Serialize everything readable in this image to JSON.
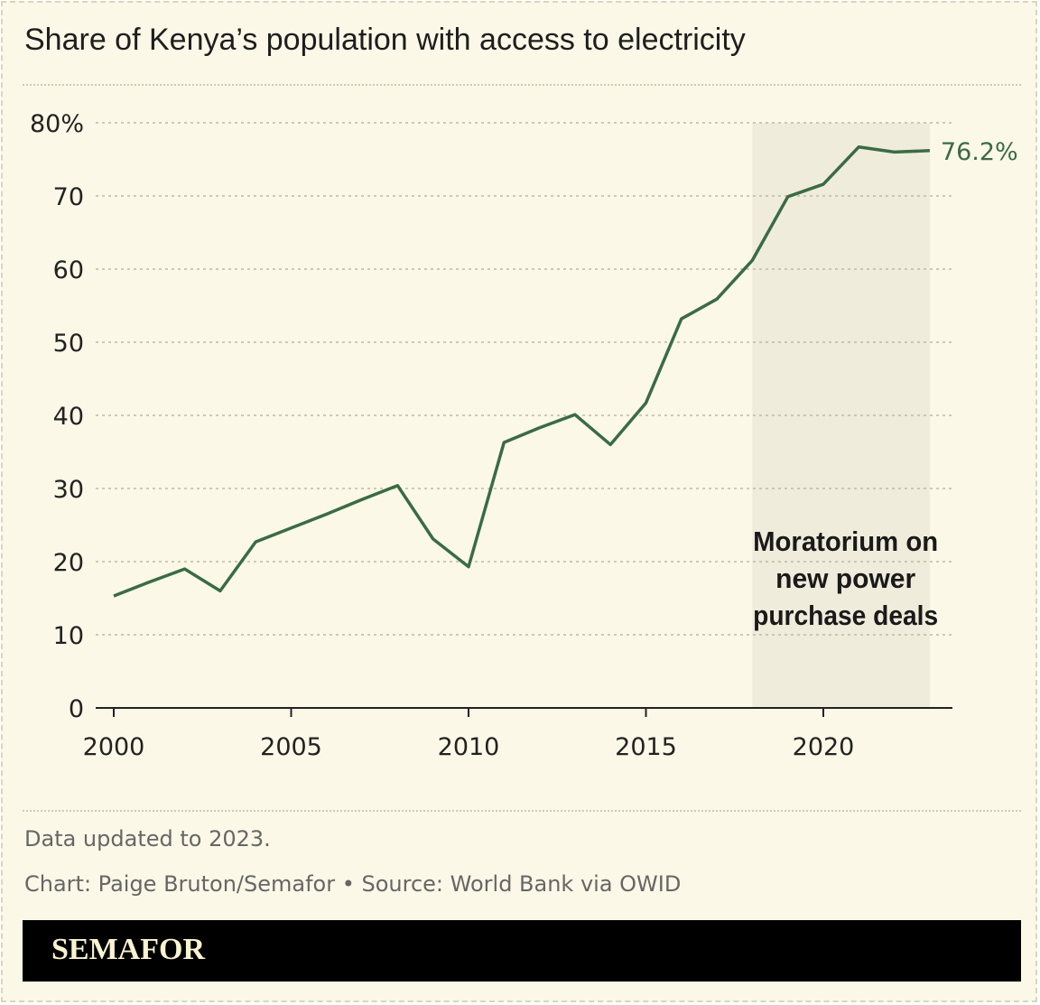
{
  "title": "Share of Kenya’s population with access to electricity",
  "footer": {
    "note": "Data updated to 2023.",
    "credit": "Chart: Paige Bruton/Semafor • Source: World Bank via OWID",
    "brand": "SEMAFOR"
  },
  "colors": {
    "background": "#fbf8e7",
    "line": "#3a6b45",
    "shade": "#efecdb",
    "grid": "#bdb9a6"
  },
  "chart_data": {
    "type": "line",
    "title": "Share of Kenya’s population with access to electricity",
    "x": [
      2000,
      2001,
      2002,
      2003,
      2004,
      2005,
      2006,
      2007,
      2008,
      2009,
      2010,
      2011,
      2012,
      2013,
      2014,
      2015,
      2016,
      2017,
      2018,
      2019,
      2020,
      2021,
      2022,
      2023
    ],
    "series": [
      {
        "values": [
          15.3,
          17.2,
          19.0,
          16.0,
          22.7,
          24.6,
          26.5,
          28.5,
          30.4,
          23.1,
          19.3,
          36.3,
          38.3,
          40.1,
          36.0,
          41.7,
          53.2,
          55.9,
          61.2,
          69.9,
          71.6,
          76.7,
          76.0,
          76.2
        ]
      }
    ],
    "xlim": [
      2000,
      2023
    ],
    "ylim": [
      0,
      80
    ],
    "xticks": [
      "2000",
      "2005",
      "2010",
      "2015",
      "2020"
    ],
    "yticks": [
      "0",
      "10",
      "20",
      "30",
      "40",
      "50",
      "60",
      "70",
      "80%"
    ],
    "grid": true,
    "end_label": "76.2%",
    "shaded_region": {
      "from": 2018,
      "to": 2023,
      "label_lines": [
        "Moratorium on",
        "new power",
        "purchase deals"
      ]
    }
  }
}
